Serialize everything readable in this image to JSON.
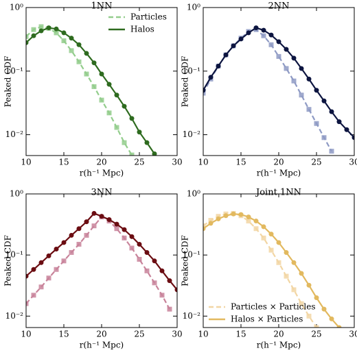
{
  "chart_data": [
    {
      "type": "line",
      "title": "1NN",
      "xlabel": "r(h⁻¹ Mpc)",
      "ylabel": "Peaked CDF",
      "log_y": true,
      "legend": "upper-right",
      "xlim": [
        10,
        30
      ],
      "xticks": [
        10,
        15,
        20,
        25,
        30
      ],
      "ylim": [
        0.0047,
        1
      ],
      "yticks": [
        {
          "value": 0.01,
          "label": "10⁻²"
        },
        {
          "value": 0.1,
          "label": "10⁻¹"
        },
        {
          "value": 1,
          "label": "10⁰"
        }
      ],
      "series": [
        {
          "name": "Particles",
          "color": "#93cd8c",
          "linestyle": "dashed",
          "marker": "square",
          "x": [
            10,
            11,
            12,
            13,
            14,
            15,
            16,
            17,
            18,
            19,
            20,
            21,
            22,
            23,
            24
          ],
          "values": [
            0.35,
            0.45,
            0.5,
            0.47,
            0.4,
            0.3,
            0.21,
            0.14,
            0.09,
            0.057,
            0.035,
            0.022,
            0.013,
            0.0075,
            0.0048
          ]
        },
        {
          "name": "Halos",
          "color": "#2e6b1f",
          "linestyle": "solid",
          "marker": "circle",
          "x": [
            10,
            11,
            12,
            13,
            14,
            15,
            16,
            17,
            18,
            19,
            20,
            21,
            22,
            23,
            24,
            25,
            26,
            27
          ],
          "values": [
            0.28,
            0.36,
            0.43,
            0.48,
            0.46,
            0.4,
            0.33,
            0.26,
            0.19,
            0.135,
            0.09,
            0.062,
            0.042,
            0.028,
            0.018,
            0.011,
            0.0075,
            0.005
          ]
        }
      ]
    },
    {
      "type": "line",
      "title": "2NN",
      "xlabel": "r(h⁻¹ Mpc)",
      "ylabel": "Peaked CDF",
      "log_y": true,
      "xlim": [
        10,
        30
      ],
      "xticks": [
        10,
        15,
        20,
        25,
        30
      ],
      "ylim": [
        0.0047,
        1
      ],
      "yticks": [
        {
          "value": 0.01,
          "label": "10⁻²"
        },
        {
          "value": 0.1,
          "label": "10⁻¹"
        },
        {
          "value": 1,
          "label": "10⁰"
        }
      ],
      "series": [
        {
          "color": "#8e9ac4",
          "linestyle": "dashed",
          "marker": "square",
          "x": [
            10,
            11,
            12,
            13,
            14,
            15,
            16,
            17,
            18,
            19,
            20,
            21,
            22,
            23,
            24,
            25,
            26,
            27
          ],
          "values": [
            0.045,
            0.075,
            0.12,
            0.18,
            0.25,
            0.33,
            0.42,
            0.45,
            0.36,
            0.26,
            0.17,
            0.11,
            0.07,
            0.042,
            0.025,
            0.015,
            0.009,
            0.0055
          ]
        },
        {
          "color": "#0d1540",
          "linestyle": "solid",
          "marker": "circle",
          "x": [
            10,
            11,
            12,
            13,
            14,
            15,
            16,
            17,
            18,
            19,
            20,
            21,
            22,
            23,
            24,
            25,
            26,
            27,
            28,
            29,
            30
          ],
          "values": [
            0.05,
            0.08,
            0.12,
            0.18,
            0.25,
            0.32,
            0.4,
            0.48,
            0.44,
            0.37,
            0.29,
            0.22,
            0.16,
            0.11,
            0.075,
            0.05,
            0.034,
            0.023,
            0.016,
            0.012,
            0.009
          ]
        }
      ]
    },
    {
      "type": "line",
      "title": "3NN",
      "xlabel": "r(h⁻¹ Mpc)",
      "ylabel": "Peaked CDF",
      "log_y": true,
      "xlim": [
        10,
        30
      ],
      "xticks": [
        10,
        15,
        20,
        25,
        30
      ],
      "ylim": [
        0.0065,
        1
      ],
      "yticks": [
        {
          "value": 0.01,
          "label": "10⁻²"
        },
        {
          "value": 0.1,
          "label": "10⁻¹"
        },
        {
          "value": 1,
          "label": "10⁰"
        }
      ],
      "series": [
        {
          "color": "#c8839a",
          "linestyle": "dashed",
          "marker": "square",
          "x": [
            10,
            11,
            12,
            13,
            14,
            15,
            16,
            17,
            18,
            19,
            20,
            21,
            22,
            23,
            24,
            25,
            26,
            27,
            28,
            29
          ],
          "values": [
            0.016,
            0.022,
            0.03,
            0.042,
            0.058,
            0.08,
            0.11,
            0.15,
            0.21,
            0.3,
            0.42,
            0.36,
            0.27,
            0.19,
            0.13,
            0.085,
            0.055,
            0.035,
            0.022,
            0.013
          ]
        },
        {
          "color": "#6b0d12",
          "linestyle": "solid",
          "marker": "circle",
          "x": [
            10,
            11,
            12,
            13,
            14,
            15,
            16,
            17,
            18,
            19,
            20,
            21,
            22,
            23,
            24,
            25,
            26,
            27,
            28,
            29,
            30
          ],
          "values": [
            0.045,
            0.058,
            0.075,
            0.097,
            0.125,
            0.16,
            0.21,
            0.27,
            0.35,
            0.48,
            0.43,
            0.38,
            0.32,
            0.26,
            0.2,
            0.15,
            0.11,
            0.08,
            0.055,
            0.038,
            0.027
          ]
        }
      ]
    },
    {
      "type": "line",
      "title": "Joint 1NN",
      "xlabel": "r(h⁻¹ Mpc)",
      "ylabel": "Peaked CDF",
      "log_y": true,
      "legend": "lower-left",
      "xlim": [
        10,
        30
      ],
      "xticks": [
        10,
        15,
        20,
        25,
        30
      ],
      "ylim": [
        0.0065,
        1
      ],
      "yticks": [
        {
          "value": 0.01,
          "label": "10⁻²"
        },
        {
          "value": 0.1,
          "label": "10⁻¹"
        },
        {
          "value": 1,
          "label": "10⁰"
        }
      ],
      "series": [
        {
          "name": "Particles × Particles",
          "color": "#f2d6a4",
          "linestyle": "dashed",
          "marker": "square",
          "x": [
            10,
            11,
            12,
            13,
            14,
            15,
            16,
            17,
            18,
            19,
            20,
            21,
            22,
            23,
            24,
            25
          ],
          "values": [
            0.3,
            0.37,
            0.43,
            0.47,
            0.48,
            0.44,
            0.36,
            0.27,
            0.19,
            0.12,
            0.075,
            0.045,
            0.027,
            0.016,
            0.01,
            0.0065
          ]
        },
        {
          "name": "Halos × Particles",
          "color": "#e2b95f",
          "linestyle": "solid",
          "marker": "circle",
          "x": [
            10,
            11,
            12,
            13,
            14,
            15,
            16,
            17,
            18,
            19,
            20,
            21,
            22,
            23,
            24,
            25,
            26,
            27,
            28
          ],
          "values": [
            0.27,
            0.33,
            0.39,
            0.44,
            0.47,
            0.46,
            0.42,
            0.36,
            0.29,
            0.22,
            0.16,
            0.11,
            0.075,
            0.05,
            0.032,
            0.02,
            0.013,
            0.009,
            0.0065
          ]
        }
      ]
    }
  ]
}
